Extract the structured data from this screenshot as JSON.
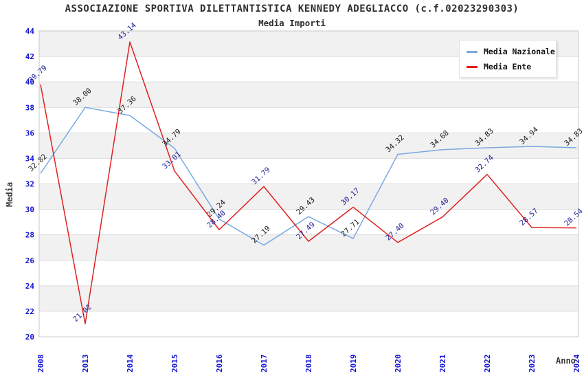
{
  "chart_data": {
    "type": "line",
    "title": "ASSOCIAZIONE SPORTIVA DILETTANTISTICA KENNEDY ADEGLIACCO (c.f.02023290303)",
    "subtitle": "Media Importi",
    "xlabel": "Anno",
    "ylabel": "Media",
    "ylim": [
      20,
      44
    ],
    "ytick_step": 2,
    "grid": true,
    "band_fill": "#f1f1f1",
    "gridline_color": "#dcdcdc",
    "plot_border_color": "#c8c8c8",
    "axis_text_color": "#1414d2",
    "legend_position": "top-right",
    "categories": [
      "2008",
      "2013",
      "2014",
      "2015",
      "2016",
      "2017",
      "2018",
      "2019",
      "2020",
      "2021",
      "2022",
      "2023",
      "2024"
    ],
    "series": [
      {
        "name": "Media Nazionale",
        "color": "#79a9e0",
        "label_color": "#1a1a1a",
        "values": [
          32.82,
          38.0,
          37.36,
          34.79,
          29.24,
          27.19,
          29.43,
          27.71,
          34.32,
          34.68,
          34.83,
          34.94,
          34.83
        ]
      },
      {
        "name": "Media Ente",
        "color": "#e02020",
        "label_color": "#222299",
        "values": [
          39.79,
          21.02,
          43.14,
          33.01,
          28.4,
          31.79,
          27.49,
          30.17,
          27.4,
          29.4,
          32.74,
          28.57,
          28.54
        ]
      }
    ]
  }
}
